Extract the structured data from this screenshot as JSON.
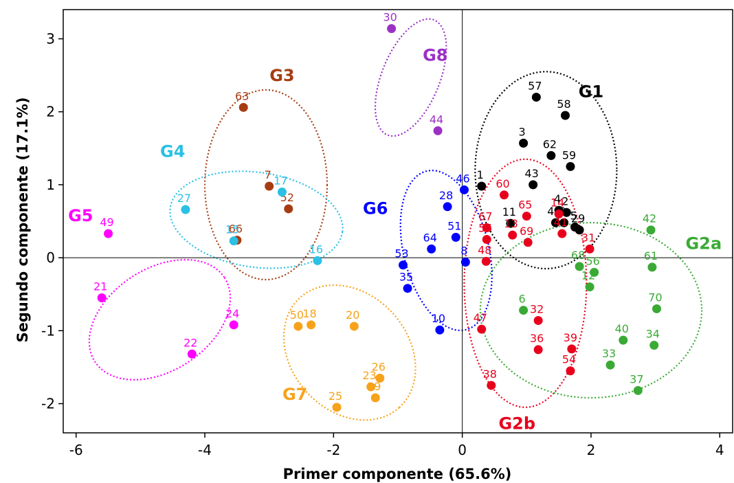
{
  "chart_data": {
    "type": "scatter",
    "xlabel": "Primer componente (65.6%)",
    "ylabel": "Segundo componente (17.1%)",
    "xlim": [
      -6.2,
      4.2
    ],
    "ylim": [
      -2.4,
      3.4
    ],
    "xticks": [
      -6,
      -4,
      -2,
      0,
      2,
      4
    ],
    "yticks": [
      -2,
      -1,
      0,
      1,
      2,
      3
    ],
    "grid": false,
    "reference_lines": {
      "x": 0,
      "y": 0
    },
    "groups": [
      {
        "name": "G1",
        "color": "#000000",
        "ellipse": {
          "cx": 1.3,
          "cy": 1.2,
          "rx": 1.1,
          "ry": 1.35,
          "angle": 0
        },
        "label_at": [
          2.0,
          2.2
        ],
        "points": [
          {
            "id": "1",
            "x": 0.3,
            "y": 0.98
          },
          {
            "id": "3",
            "x": 0.95,
            "y": 1.57
          },
          {
            "id": "57",
            "x": 1.15,
            "y": 2.2
          },
          {
            "id": "58",
            "x": 1.6,
            "y": 1.95
          },
          {
            "id": "62",
            "x": 1.38,
            "y": 1.4
          },
          {
            "id": "59",
            "x": 1.68,
            "y": 1.25
          },
          {
            "id": "43",
            "x": 1.1,
            "y": 1.0
          },
          {
            "id": "4",
            "x": 1.5,
            "y": 0.65
          },
          {
            "id": "2",
            "x": 1.62,
            "y": 0.62
          },
          {
            "id": "11",
            "x": 0.75,
            "y": 0.47
          },
          {
            "id": "45",
            "x": 1.45,
            "y": 0.48
          },
          {
            "id": "9",
            "x": 1.58,
            "y": 0.48
          },
          {
            "id": "5",
            "x": 1.75,
            "y": 0.42
          },
          {
            "id": "29",
            "x": 1.82,
            "y": 0.38
          }
        ]
      },
      {
        "name": "G2a",
        "color": "#3aaa35",
        "ellipse": {
          "cx": 2.0,
          "cy": -0.72,
          "rx": 1.72,
          "ry": 1.2,
          "angle": 0
        },
        "label_at": [
          3.75,
          0.12
        ],
        "points": [
          {
            "id": "42",
            "x": 2.93,
            "y": 0.38
          },
          {
            "id": "68",
            "x": 1.82,
            "y": -0.12
          },
          {
            "id": "56",
            "x": 2.05,
            "y": -0.2
          },
          {
            "id": "61",
            "x": 2.95,
            "y": -0.13
          },
          {
            "id": "12",
            "x": 1.98,
            "y": -0.4
          },
          {
            "id": "6",
            "x": 0.95,
            "y": -0.72
          },
          {
            "id": "70",
            "x": 3.02,
            "y": -0.7
          },
          {
            "id": "40",
            "x": 2.5,
            "y": -1.13
          },
          {
            "id": "34",
            "x": 2.98,
            "y": -1.2
          },
          {
            "id": "33",
            "x": 2.3,
            "y": -1.47
          },
          {
            "id": "37",
            "x": 2.73,
            "y": -1.82
          }
        ]
      },
      {
        "name": "G2b",
        "color": "#e8001c",
        "ellipse": {
          "cx": 0.98,
          "cy": -0.35,
          "rx": 0.95,
          "ry": 1.7,
          "angle": 0
        },
        "label_at": [
          0.85,
          -2.35
        ],
        "points": [
          {
            "id": "60",
            "x": 0.65,
            "y": 0.86
          },
          {
            "id": "65",
            "x": 1.0,
            "y": 0.57
          },
          {
            "id": "14",
            "x": 1.5,
            "y": 0.6
          },
          {
            "id": "67",
            "x": 0.38,
            "y": 0.41
          },
          {
            "id": "13",
            "x": 0.78,
            "y": 0.31
          },
          {
            "id": "55",
            "x": 0.38,
            "y": 0.25
          },
          {
            "id": "69",
            "x": 1.02,
            "y": 0.21
          },
          {
            "id": "41",
            "x": 1.55,
            "y": 0.33
          },
          {
            "id": "31",
            "x": 1.98,
            "y": 0.12
          },
          {
            "id": "48",
            "x": 0.37,
            "y": -0.05
          },
          {
            "id": "47",
            "x": 0.3,
            "y": -0.98
          },
          {
            "id": "32",
            "x": 1.18,
            "y": -0.86
          },
          {
            "id": "39",
            "x": 1.7,
            "y": -1.25
          },
          {
            "id": "36",
            "x": 1.18,
            "y": -1.26
          },
          {
            "id": "54",
            "x": 1.68,
            "y": -1.55
          },
          {
            "id": "38",
            "x": 0.45,
            "y": -1.75
          }
        ]
      },
      {
        "name": "G3",
        "color": "#a63d12",
        "ellipse": {
          "cx": -3.05,
          "cy": 1.0,
          "rx": 0.95,
          "ry": 1.3,
          "angle": 0
        },
        "label_at": [
          -2.8,
          2.42
        ],
        "points": [
          {
            "id": "63",
            "x": -3.4,
            "y": 2.06
          },
          {
            "id": "7",
            "x": -3.0,
            "y": 0.98
          },
          {
            "id": "52",
            "x": -2.7,
            "y": 0.67
          },
          {
            "id": "66",
            "x": -3.5,
            "y": 0.24
          }
        ]
      },
      {
        "name": "G4",
        "color": "#2bc0e4",
        "ellipse": {
          "cx": -3.2,
          "cy": 0.52,
          "rx": 1.35,
          "ry": 0.65,
          "angle": -8
        },
        "label_at": [
          -4.5,
          1.38
        ],
        "points": [
          {
            "id": "17",
            "x": -2.8,
            "y": 0.9
          },
          {
            "id": "27",
            "x": -4.3,
            "y": 0.66
          },
          {
            "id": "15",
            "x": -3.55,
            "y": 0.23
          },
          {
            "id": "16",
            "x": -2.25,
            "y": -0.04
          }
        ]
      },
      {
        "name": "G5",
        "color": "#ff00ff",
        "ellipse": {
          "cx": -4.7,
          "cy": -0.85,
          "rx": 1.2,
          "ry": 0.7,
          "angle": 33
        },
        "label_at": [
          -5.93,
          0.5
        ],
        "points": [
          {
            "id": "49",
            "x": -5.5,
            "y": 0.33
          },
          {
            "id": "21",
            "x": -5.6,
            "y": -0.55
          },
          {
            "id": "24",
            "x": -3.55,
            "y": -0.92
          },
          {
            "id": "22",
            "x": -4.2,
            "y": -1.32
          }
        ]
      },
      {
        "name": "G6",
        "color": "#0000ff",
        "ellipse": {
          "cx": -0.25,
          "cy": 0.1,
          "rx": 0.66,
          "ry": 1.12,
          "angle": 14
        },
        "label_at": [
          -1.35,
          0.6
        ],
        "points": [
          {
            "id": "46",
            "x": 0.03,
            "y": 0.93
          },
          {
            "id": "28",
            "x": -0.23,
            "y": 0.7
          },
          {
            "id": "51",
            "x": -0.1,
            "y": 0.28
          },
          {
            "id": "64",
            "x": -0.48,
            "y": 0.12
          },
          {
            "id": "53",
            "x": -0.92,
            "y": -0.1
          },
          {
            "id": "8",
            "x": 0.05,
            "y": -0.06
          },
          {
            "id": "35",
            "x": -0.85,
            "y": -0.42
          },
          {
            "id": "10",
            "x": -0.35,
            "y": -0.99
          }
        ]
      },
      {
        "name": "G7",
        "color": "#f7a21b",
        "ellipse": {
          "cx": -1.75,
          "cy": -1.3,
          "rx": 1.15,
          "ry": 0.8,
          "angle": -48
        },
        "label_at": [
          -2.6,
          -1.95
        ],
        "points": [
          {
            "id": "50",
            "x": -2.55,
            "y": -0.94
          },
          {
            "id": "18",
            "x": -2.35,
            "y": -0.92
          },
          {
            "id": "20",
            "x": -1.68,
            "y": -0.94
          },
          {
            "id": "26",
            "x": -1.28,
            "y": -1.65
          },
          {
            "id": "23",
            "x": -1.42,
            "y": -1.77
          },
          {
            "id": "19",
            "x": -1.35,
            "y": -1.92
          },
          {
            "id": "25",
            "x": -1.95,
            "y": -2.05
          }
        ]
      },
      {
        "name": "G8",
        "color": "#9b30c6",
        "ellipse": {
          "cx": -0.8,
          "cy": 2.47,
          "rx": 0.45,
          "ry": 0.85,
          "angle": -22
        },
        "label_at": [
          -0.42,
          2.7
        ],
        "points": [
          {
            "id": "30",
            "x": -1.1,
            "y": 3.14
          },
          {
            "id": "44",
            "x": -0.38,
            "y": 1.74
          }
        ]
      }
    ]
  }
}
